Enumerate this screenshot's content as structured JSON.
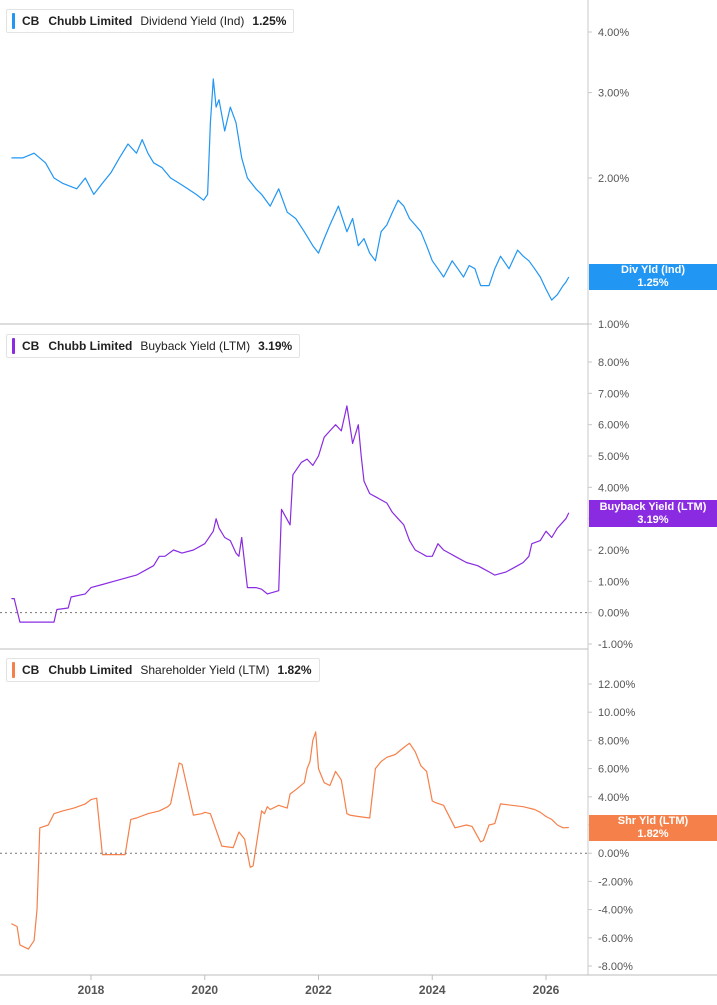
{
  "colors": {
    "dividend": "#2196f3",
    "buyback": "#8a2be2",
    "shareholder": "#f5804a",
    "axis_text": "#555555",
    "grid": "#d0d0d0"
  },
  "x_axis": {
    "ticks": [
      "2018",
      "2020",
      "2022",
      "2024",
      "2026"
    ]
  },
  "panels": [
    {
      "id": "dividend",
      "ticker": "CB",
      "company": "Chubb Limited",
      "metric": "Dividend Yield (Ind)",
      "value": "1.25%",
      "flag_title": "Div Yld (Ind)",
      "flag_value": "1.25%",
      "y_ticks": [
        "4.00%",
        "3.00%",
        "2.00%",
        "1.00%"
      ]
    },
    {
      "id": "buyback",
      "ticker": "CB",
      "company": "Chubb Limited",
      "metric": "Buyback Yield (LTM)",
      "value": "3.19%",
      "flag_title": "Buyback Yield (LTM)",
      "flag_value": "3.19%",
      "y_ticks": [
        "8.00%",
        "7.00%",
        "6.00%",
        "5.00%",
        "4.00%",
        "3.00%",
        "2.00%",
        "1.00%",
        "0.00%",
        "-1.00%"
      ]
    },
    {
      "id": "shareholder",
      "ticker": "CB",
      "company": "Chubb Limited",
      "metric": "Shareholder Yield (LTM)",
      "value": "1.82%",
      "flag_title": "Shr Yld (LTM)",
      "flag_value": "1.82%",
      "y_ticks": [
        "12.00%",
        "10.00%",
        "8.00%",
        "6.00%",
        "4.00%",
        "2.00%",
        "0.00%",
        "-2.00%",
        "-4.00%",
        "-6.00%",
        "-8.00%"
      ]
    }
  ],
  "chart_data": [
    {
      "type": "line",
      "title": "",
      "y_scale": "log",
      "ylim": [
        0.95,
        4.6
      ],
      "xlim": [
        2016.6,
        2026.6
      ],
      "grid": false,
      "series": [
        {
          "name": "Dividend Yield (Ind)",
          "x": [
            2016.6,
            2016.8,
            2017.0,
            2017.2,
            2017.35,
            2017.5,
            2017.75,
            2017.9,
            2018.05,
            2018.2,
            2018.35,
            2018.5,
            2018.65,
            2018.8,
            2018.9,
            2019.0,
            2019.1,
            2019.25,
            2019.4,
            2019.55,
            2019.7,
            2019.85,
            2019.98,
            2020.05,
            2020.1,
            2020.15,
            2020.2,
            2020.25,
            2020.35,
            2020.45,
            2020.55,
            2020.65,
            2020.75,
            2020.9,
            2021.0,
            2021.15,
            2021.3,
            2021.45,
            2021.6,
            2021.75,
            2021.9,
            2022.0,
            2022.1,
            2022.2,
            2022.35,
            2022.5,
            2022.6,
            2022.7,
            2022.8,
            2022.9,
            2023.0,
            2023.1,
            2023.2,
            2023.3,
            2023.4,
            2023.5,
            2023.6,
            2023.7,
            2023.8,
            2023.9,
            2024.0,
            2024.1,
            2024.2,
            2024.35,
            2024.45,
            2024.55,
            2024.65,
            2024.75,
            2024.85,
            2025.0,
            2025.1,
            2025.2,
            2025.35,
            2025.5,
            2025.6,
            2025.7,
            2025.8,
            2025.9,
            2026.0,
            2026.1,
            2026.2,
            2026.3,
            2026.35,
            2026.4
          ],
          "values": [
            2.2,
            2.2,
            2.25,
            2.15,
            2.0,
            1.95,
            1.9,
            2.0,
            1.85,
            1.95,
            2.05,
            2.2,
            2.35,
            2.25,
            2.4,
            2.25,
            2.15,
            2.1,
            2.0,
            1.95,
            1.9,
            1.85,
            1.8,
            1.85,
            2.6,
            3.2,
            2.8,
            2.9,
            2.5,
            2.8,
            2.6,
            2.2,
            2.0,
            1.9,
            1.85,
            1.75,
            1.9,
            1.7,
            1.65,
            1.55,
            1.45,
            1.4,
            1.5,
            1.6,
            1.75,
            1.55,
            1.65,
            1.45,
            1.5,
            1.4,
            1.35,
            1.55,
            1.6,
            1.7,
            1.8,
            1.75,
            1.65,
            1.6,
            1.55,
            1.45,
            1.35,
            1.3,
            1.25,
            1.35,
            1.3,
            1.25,
            1.32,
            1.3,
            1.2,
            1.2,
            1.3,
            1.38,
            1.3,
            1.42,
            1.38,
            1.35,
            1.3,
            1.25,
            1.18,
            1.12,
            1.15,
            1.2,
            1.22,
            1.25
          ]
        }
      ]
    },
    {
      "type": "line",
      "title": "",
      "ylim": [
        -1.0,
        8.0
      ],
      "xlim": [
        2016.6,
        2026.6
      ],
      "grid": false,
      "series": [
        {
          "name": "Buyback Yield (LTM)",
          "x": [
            2016.6,
            2016.65,
            2016.75,
            2017.0,
            2017.2,
            2017.35,
            2017.4,
            2017.6,
            2017.65,
            2017.9,
            2018.0,
            2018.2,
            2018.4,
            2018.6,
            2018.8,
            2019.0,
            2019.1,
            2019.2,
            2019.3,
            2019.45,
            2019.6,
            2019.8,
            2020.0,
            2020.15,
            2020.2,
            2020.25,
            2020.35,
            2020.45,
            2020.55,
            2020.6,
            2020.65,
            2020.75,
            2020.9,
            2021.0,
            2021.1,
            2021.2,
            2021.3,
            2021.35,
            2021.5,
            2021.55,
            2021.7,
            2021.8,
            2021.9,
            2022.0,
            2022.1,
            2022.2,
            2022.3,
            2022.4,
            2022.5,
            2022.55,
            2022.6,
            2022.7,
            2022.75,
            2022.8,
            2022.9,
            2023.0,
            2023.1,
            2023.2,
            2023.3,
            2023.4,
            2023.5,
            2023.6,
            2023.7,
            2023.8,
            2023.9,
            2024.0,
            2024.1,
            2024.2,
            2024.3,
            2024.4,
            2024.6,
            2024.8,
            2024.9,
            2025.0,
            2025.1,
            2025.3,
            2025.5,
            2025.6,
            2025.7,
            2025.75,
            2025.9,
            2026.0,
            2026.1,
            2026.2,
            2026.3,
            2026.35,
            2026.4
          ],
          "values": [
            0.45,
            0.45,
            -0.3,
            -0.3,
            -0.3,
            -0.3,
            0.1,
            0.15,
            0.5,
            0.6,
            0.8,
            0.9,
            1.0,
            1.1,
            1.2,
            1.4,
            1.5,
            1.8,
            1.8,
            2.0,
            1.9,
            2.0,
            2.2,
            2.6,
            3.0,
            2.7,
            2.4,
            2.3,
            1.9,
            1.8,
            2.4,
            0.8,
            0.8,
            0.75,
            0.6,
            0.65,
            0.7,
            3.3,
            2.8,
            4.4,
            4.8,
            4.9,
            4.7,
            5.0,
            5.6,
            5.8,
            6.0,
            5.8,
            6.6,
            6.0,
            5.4,
            6.0,
            5.0,
            4.2,
            3.8,
            3.7,
            3.6,
            3.5,
            3.2,
            3.0,
            2.8,
            2.3,
            2.0,
            1.9,
            1.8,
            1.8,
            2.2,
            2.0,
            1.9,
            1.8,
            1.6,
            1.5,
            1.4,
            1.3,
            1.2,
            1.3,
            1.5,
            1.6,
            1.8,
            2.2,
            2.3,
            2.6,
            2.4,
            2.7,
            2.9,
            3.0,
            3.19
          ]
        }
      ]
    },
    {
      "type": "line",
      "title": "",
      "ylim": [
        -8.0,
        12.0
      ],
      "xlim": [
        2016.6,
        2026.6
      ],
      "grid": false,
      "series": [
        {
          "name": "Shareholder Yield (LTM)",
          "x": [
            2016.6,
            2016.7,
            2016.75,
            2016.9,
            2017.0,
            2017.05,
            2017.1,
            2017.25,
            2017.35,
            2017.5,
            2017.7,
            2017.9,
            2018.0,
            2018.1,
            2018.2,
            2018.3,
            2018.6,
            2018.7,
            2018.8,
            2019.0,
            2019.2,
            2019.35,
            2019.4,
            2019.55,
            2019.6,
            2019.8,
            2019.95,
            2020.0,
            2020.1,
            2020.3,
            2020.5,
            2020.6,
            2020.7,
            2020.8,
            2020.85,
            2021.0,
            2021.05,
            2021.1,
            2021.15,
            2021.3,
            2021.45,
            2021.5,
            2021.6,
            2021.75,
            2021.8,
            2021.85,
            2021.9,
            2021.95,
            2022.0,
            2022.05,
            2022.1,
            2022.2,
            2022.3,
            2022.4,
            2022.5,
            2022.55,
            2022.7,
            2022.9,
            2023.0,
            2023.1,
            2023.2,
            2023.35,
            2023.5,
            2023.6,
            2023.7,
            2023.8,
            2023.9,
            2024.0,
            2024.05,
            2024.2,
            2024.4,
            2024.6,
            2024.7,
            2024.85,
            2024.9,
            2025.0,
            2025.1,
            2025.2,
            2025.4,
            2025.6,
            2025.8,
            2025.9,
            2026.0,
            2026.1,
            2026.2,
            2026.3,
            2026.4
          ],
          "values": [
            -5.0,
            -5.2,
            -6.5,
            -6.8,
            -6.2,
            -4.0,
            1.8,
            2.0,
            2.8,
            3.0,
            3.2,
            3.5,
            3.8,
            3.9,
            -0.1,
            -0.1,
            -0.1,
            2.4,
            2.5,
            2.8,
            3.0,
            3.3,
            3.5,
            6.4,
            6.3,
            2.7,
            2.8,
            2.9,
            2.8,
            0.5,
            0.4,
            1.5,
            1.0,
            -1.0,
            -0.9,
            3.0,
            2.8,
            3.3,
            3.1,
            3.4,
            3.2,
            4.2,
            4.5,
            5.0,
            6.0,
            6.5,
            8.0,
            8.6,
            6.0,
            5.5,
            5.0,
            4.8,
            5.8,
            5.2,
            2.8,
            2.7,
            2.6,
            2.5,
            6.0,
            6.5,
            6.8,
            7.0,
            7.5,
            7.8,
            7.2,
            6.2,
            5.8,
            3.7,
            3.6,
            3.4,
            1.8,
            2.0,
            1.9,
            0.8,
            0.9,
            2.0,
            2.1,
            3.5,
            3.4,
            3.3,
            3.1,
            2.9,
            2.6,
            2.4,
            2.0,
            1.8,
            1.82
          ]
        }
      ]
    }
  ]
}
